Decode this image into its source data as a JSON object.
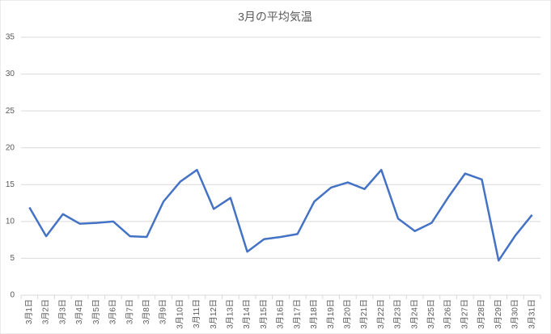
{
  "chart_data": {
    "type": "line",
    "title": "3月の平均気温",
    "categories": [
      "3月1日",
      "3月2日",
      "3月3日",
      "3月4日",
      "3月5日",
      "3月6日",
      "3月7日",
      "3月8日",
      "3月9日",
      "3月10日",
      "3月11日",
      "3月12日",
      "3月13日",
      "3月14日",
      "3月15日",
      "3月16日",
      "3月17日",
      "3月18日",
      "3月19日",
      "3月20日",
      "3月21日",
      "3月22日",
      "3月23日",
      "3月24日",
      "3月25日",
      "3月26日",
      "3月27日",
      "3月28日",
      "3月29日",
      "3月30日",
      "3月31日"
    ],
    "series": [
      {
        "color": "#4472c4",
        "values": [
          11.9,
          8.0,
          11.0,
          9.7,
          9.8,
          10.0,
          8.0,
          7.9,
          12.7,
          15.4,
          17.0,
          11.7,
          13.2,
          5.9,
          7.6,
          7.9,
          8.3,
          12.7,
          14.6,
          15.3,
          14.4,
          17.0,
          10.4,
          8.7,
          9.8,
          13.3,
          16.5,
          15.7,
          4.7,
          8.1,
          10.9
        ]
      }
    ],
    "ylim": [
      0,
      35
    ],
    "yticks": [
      0,
      5,
      10,
      15,
      20,
      25,
      30,
      35
    ],
    "grid": true
  }
}
